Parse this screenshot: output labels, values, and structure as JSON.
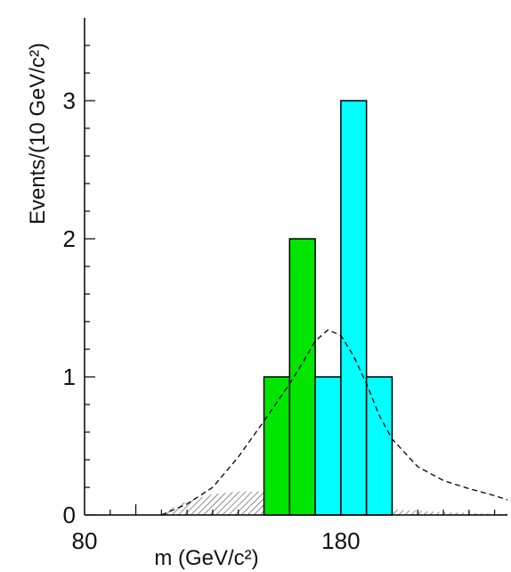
{
  "chart_data": {
    "type": "bar",
    "title": "",
    "xlabel": "m (GeV/c²)",
    "ylabel": "Events/(10 GeV/c²)",
    "xlim": [
      80,
      245
    ],
    "ylim": [
      0,
      3.6
    ],
    "x_tick_labels": [
      "80",
      "180"
    ],
    "y_tick_labels": [
      "0",
      "1",
      "2",
      "3"
    ],
    "bin_width": 10,
    "stacked_bins": [
      {
        "x_low": 150,
        "x_high": 160,
        "green": 1,
        "cyan": 0
      },
      {
        "x_low": 160,
        "x_high": 170,
        "green": 2,
        "cyan": 0
      },
      {
        "x_low": 170,
        "x_high": 180,
        "green": 0,
        "cyan": 1
      },
      {
        "x_low": 180,
        "x_high": 190,
        "green": 0,
        "cyan": 3
      },
      {
        "x_low": 190,
        "x_high": 200,
        "green": 0,
        "cyan": 1
      }
    ],
    "series": [
      {
        "color": "#00e600"
      },
      {
        "color": "#00ffff"
      }
    ],
    "signal_curve": {
      "style": "dashed",
      "color": "#000000",
      "x": [
        110,
        120,
        130,
        140,
        150,
        160,
        165,
        170,
        175,
        180,
        185,
        190,
        195,
        200,
        210,
        220,
        230,
        240,
        245
      ],
      "y": [
        0.0,
        0.08,
        0.2,
        0.42,
        0.68,
        0.95,
        1.1,
        1.26,
        1.34,
        1.3,
        1.15,
        0.95,
        0.72,
        0.55,
        0.35,
        0.25,
        0.19,
        0.14,
        0.11
      ]
    },
    "background_shape": {
      "style": "hatched",
      "color": "#555555",
      "x": [
        110,
        115,
        120,
        130,
        140,
        150,
        160,
        170,
        180,
        190,
        200,
        210,
        220,
        230,
        240,
        245
      ],
      "y": [
        0.0,
        0.06,
        0.1,
        0.15,
        0.17,
        0.17,
        0.15,
        0.12,
        0.09,
        0.06,
        0.04,
        0.03,
        0.02,
        0.015,
        0.01,
        0.008
      ]
    }
  }
}
